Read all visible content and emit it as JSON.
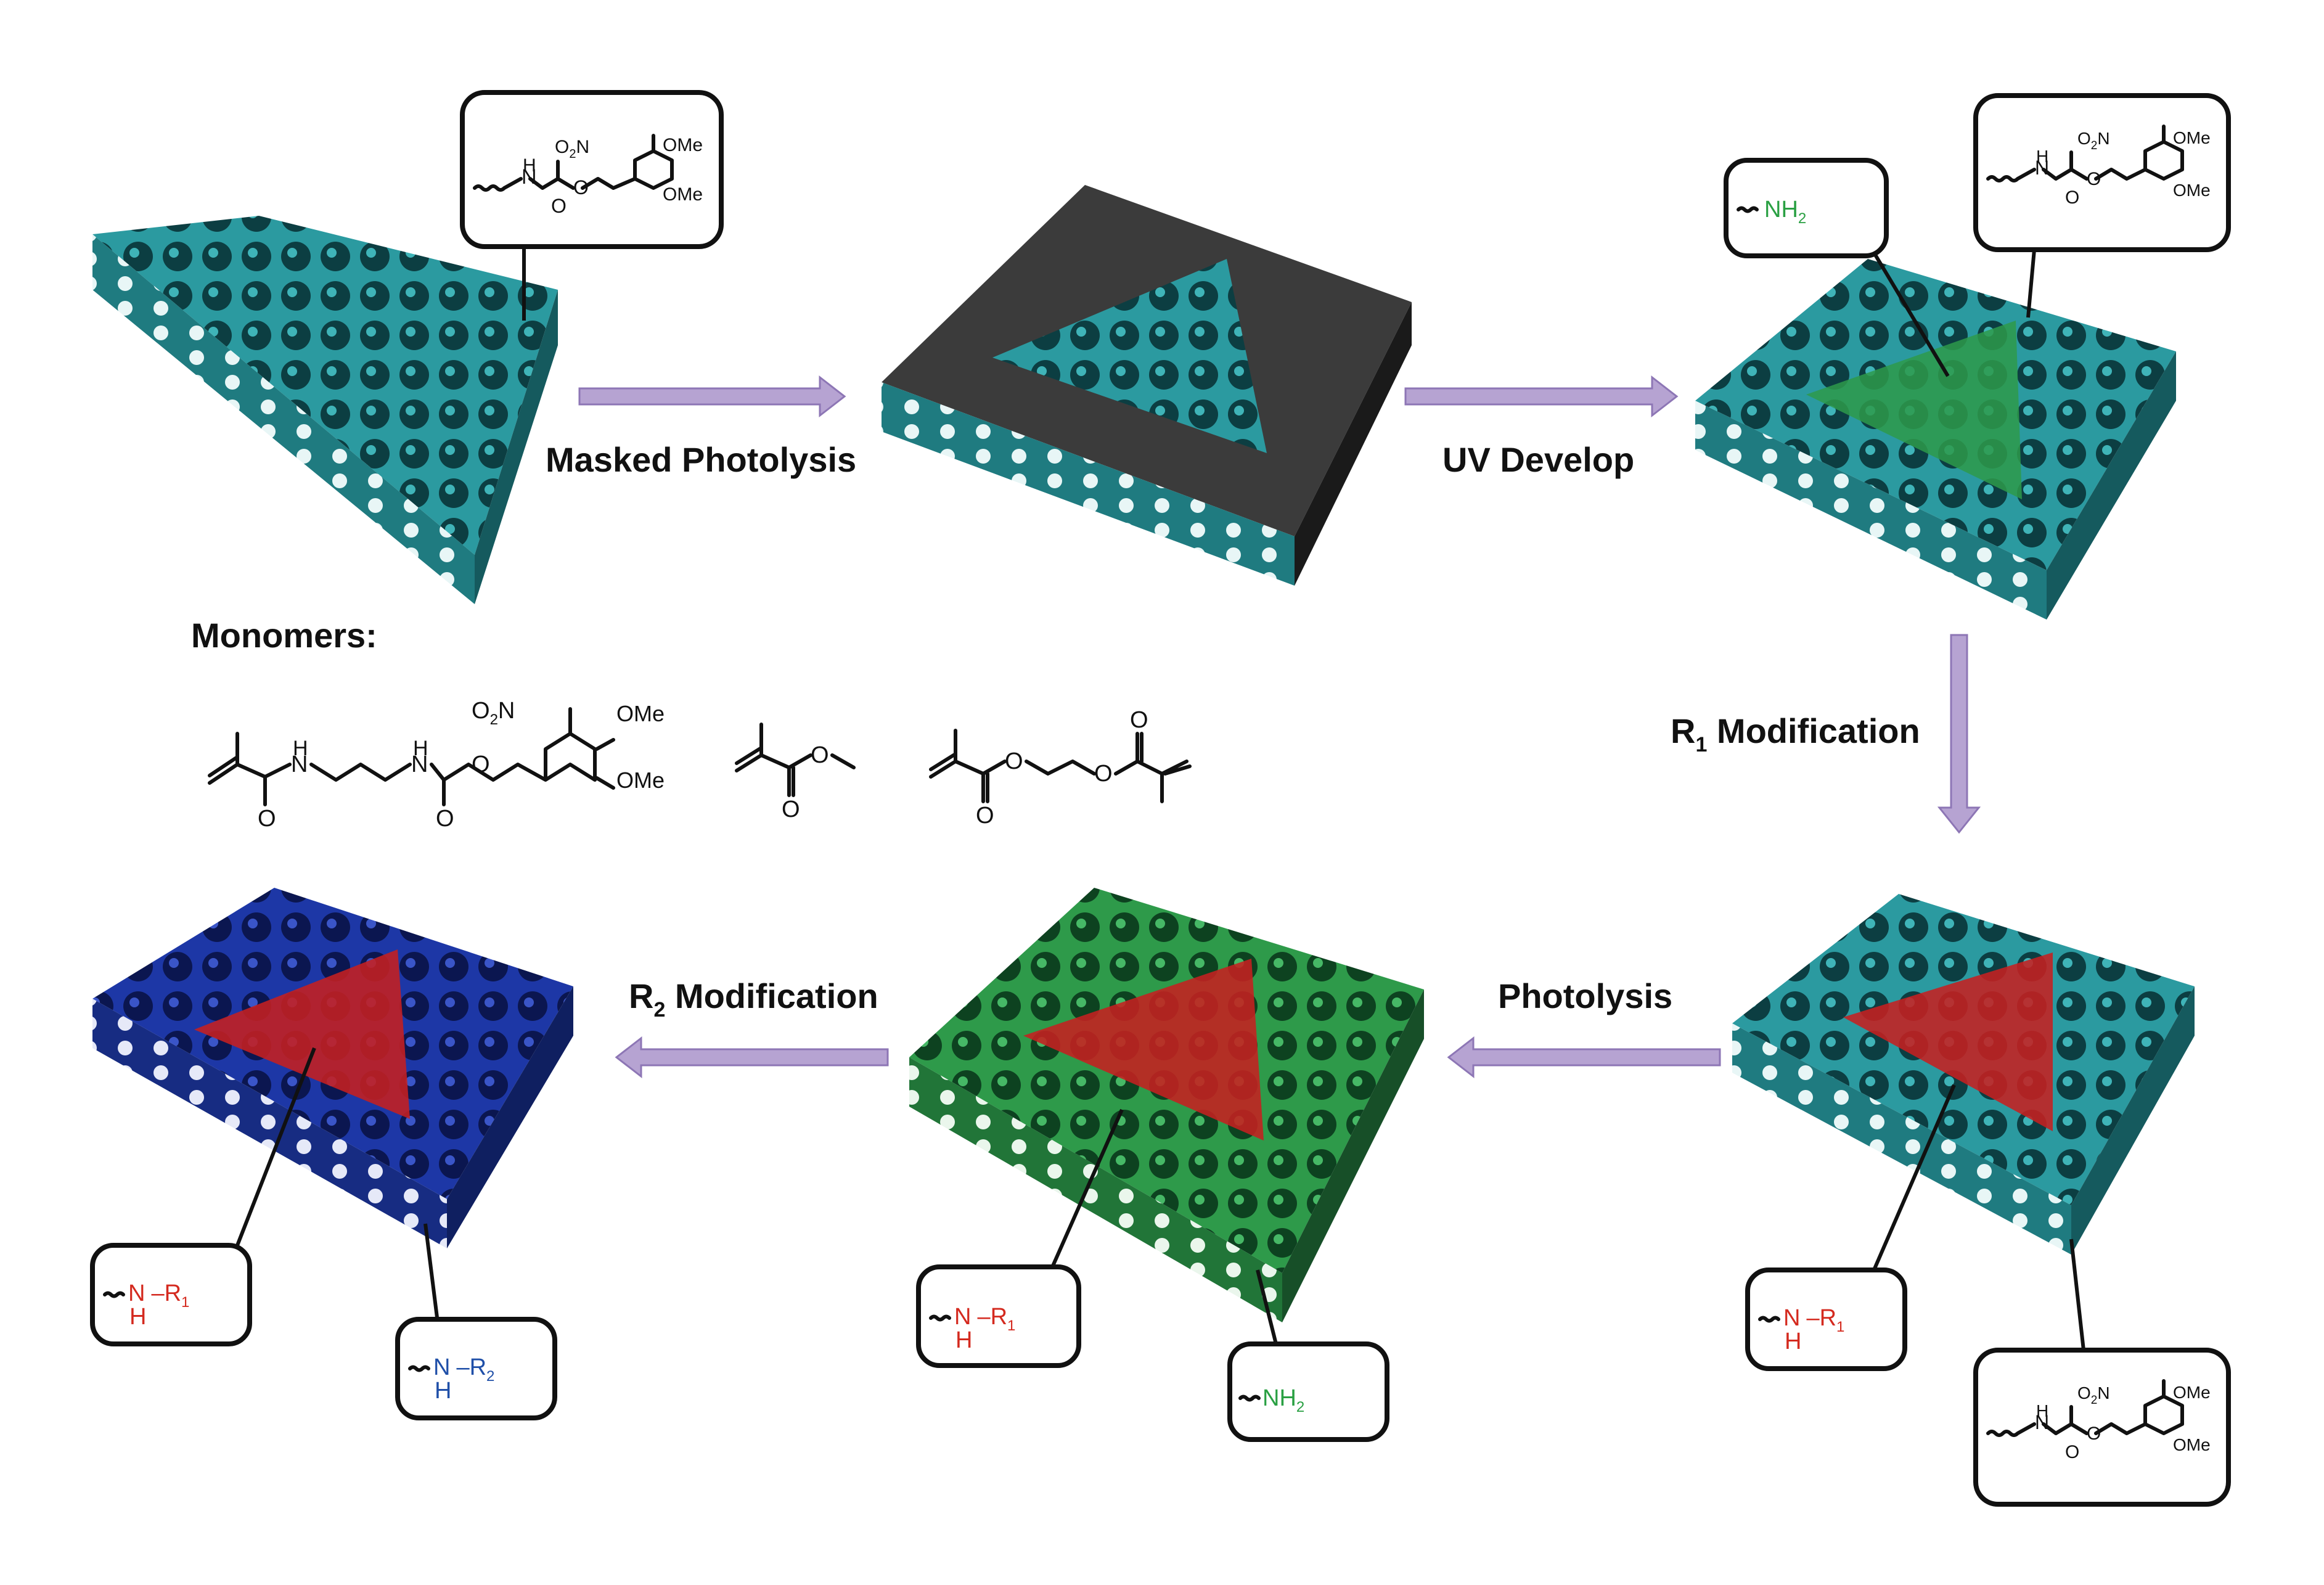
{
  "steps": {
    "masked_photolysis": "Masked Photolysis",
    "uv_develop": "UV Develop",
    "r1_modification_main": "R",
    "r1_modification_sub": "1",
    "r1_modification_rest": " Modification",
    "photolysis": "Photolysis",
    "r2_modification_main": "R",
    "r2_modification_sub": "2",
    "r2_modification_rest": " Modification"
  },
  "monomers_title": "Monomers:",
  "chem": {
    "nh": "H",
    "n": "N",
    "o": "O",
    "o2n_main": "O",
    "o2n_sub": "2",
    "o2n_rest": "N",
    "ome": "OMe",
    "nh2_main": "NH",
    "nh2_sub": "2",
    "nr_n": "N",
    "nr_dash": "–R",
    "nr_sub1": "1",
    "nr_sub2": "2",
    "nr_h": "H"
  },
  "colors": {
    "teal": "#2b9aa0",
    "green": "#2e9a4a",
    "blue": "#1d37a6",
    "red": "#c62020",
    "mask": "#3b3b3b",
    "nh2_text": "#2aa043",
    "r1_text": "#d42a1f",
    "r2_text": "#1f4fa8",
    "arrow": "#b6a3d2"
  }
}
